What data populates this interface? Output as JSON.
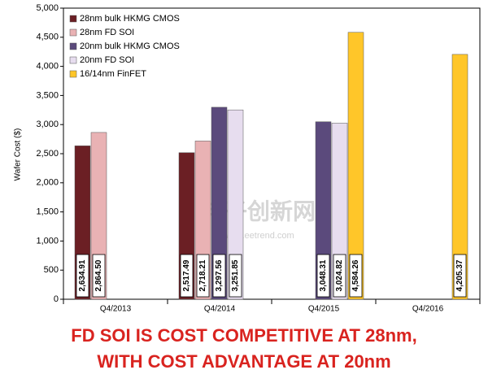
{
  "chart_data": {
    "type": "bar",
    "y_label": "Wafer Cost ($)",
    "categories": [
      "Q4/2013",
      "Q4/2014",
      "Q4/2015",
      "Q4/2016"
    ],
    "series": [
      {
        "name": "28nm bulk HKMG CMOS",
        "color": "#6b1f24",
        "values": [
          2634.91,
          2517.49,
          null,
          null
        ],
        "value_labels": [
          "2,634.91",
          "2,517.49",
          null,
          null
        ]
      },
      {
        "name": "28nm FD SOI",
        "color": "#e9b2b4",
        "values": [
          2864.5,
          2718.21,
          null,
          null
        ],
        "value_labels": [
          "2,864.50",
          "2,718.21",
          null,
          null
        ]
      },
      {
        "name": "20nm bulk HKMG CMOS",
        "color": "#5b4a7c",
        "values": [
          null,
          3297.56,
          3048.31,
          null
        ],
        "value_labels": [
          null,
          "3,297.56",
          "3,048.31",
          null
        ]
      },
      {
        "name": "20nm FD SOI",
        "color": "#e7ddef",
        "values": [
          null,
          3251.85,
          3024.82,
          null
        ],
        "value_labels": [
          null,
          "3,251.85",
          "3,024.82",
          null
        ]
      },
      {
        "name": "16/14nm FinFET",
        "color": "#ffc629",
        "values": [
          null,
          null,
          4584.26,
          4205.37
        ],
        "value_labels": [
          null,
          null,
          "4,584.26",
          "4,205.37"
        ]
      }
    ],
    "ylim": [
      0,
      5000
    ],
    "yticks": [
      0,
      500,
      {
        "value": 1000,
        "label": "1,000"
      },
      {
        "value": 1500,
        "label": "1,500"
      },
      {
        "value": 2000,
        "label": "2,000"
      },
      {
        "value": 2500,
        "label": "2,500"
      },
      {
        "value": 3000,
        "label": "3,000"
      },
      {
        "value": 3500,
        "label": "3,500"
      },
      {
        "value": 4000,
        "label": "4,000"
      },
      {
        "value": 4500,
        "label": "4,500"
      },
      {
        "value": 5000,
        "label": "5,000"
      }
    ],
    "legend": "top-left",
    "annotations": [
      "FD SOI IS COST COMPETITIVE AT 28nm,",
      "WITH COST ADVANTAGE AT 20nm"
    ],
    "watermark": [
      "电子创新网",
      "www.eetrend.com"
    ]
  }
}
